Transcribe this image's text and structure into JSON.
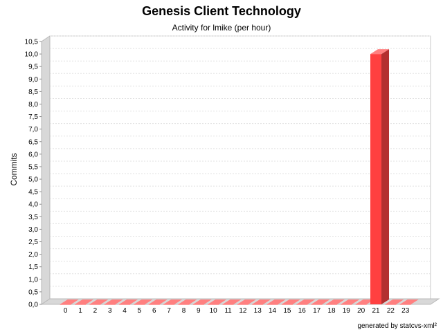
{
  "chart_data": {
    "type": "bar",
    "title": "Genesis Client Technology",
    "subtitle": "Activity for lmike (per hour)",
    "xlabel": "",
    "ylabel": "Commits",
    "categories": [
      "0",
      "1",
      "2",
      "3",
      "4",
      "5",
      "6",
      "7",
      "8",
      "9",
      "10",
      "11",
      "12",
      "13",
      "14",
      "15",
      "16",
      "17",
      "18",
      "19",
      "20",
      "21",
      "22",
      "23"
    ],
    "values": [
      0,
      0,
      0,
      0,
      0,
      0,
      0,
      0,
      0,
      0,
      0,
      0,
      0,
      0,
      0,
      0,
      0,
      0,
      0,
      0,
      0,
      10,
      0,
      0
    ],
    "ylim": [
      0,
      10.5
    ],
    "yticks": [
      "0,0",
      "0,5",
      "1,0",
      "1,5",
      "2,0",
      "2,5",
      "3,0",
      "3,5",
      "4,0",
      "4,5",
      "5,0",
      "5,5",
      "6,0",
      "6,5",
      "7,0",
      "7,5",
      "8,0",
      "8,5",
      "9,0",
      "9,5",
      "10,0",
      "10,5"
    ],
    "grid": true,
    "colors": {
      "bar": "#ff4040",
      "bar_side": "#b33030",
      "bar_top": "#ff8080",
      "wall": "#d8d8d8",
      "grid": "#e0e0e0"
    }
  },
  "footer": "generated by statcvs-xml²"
}
